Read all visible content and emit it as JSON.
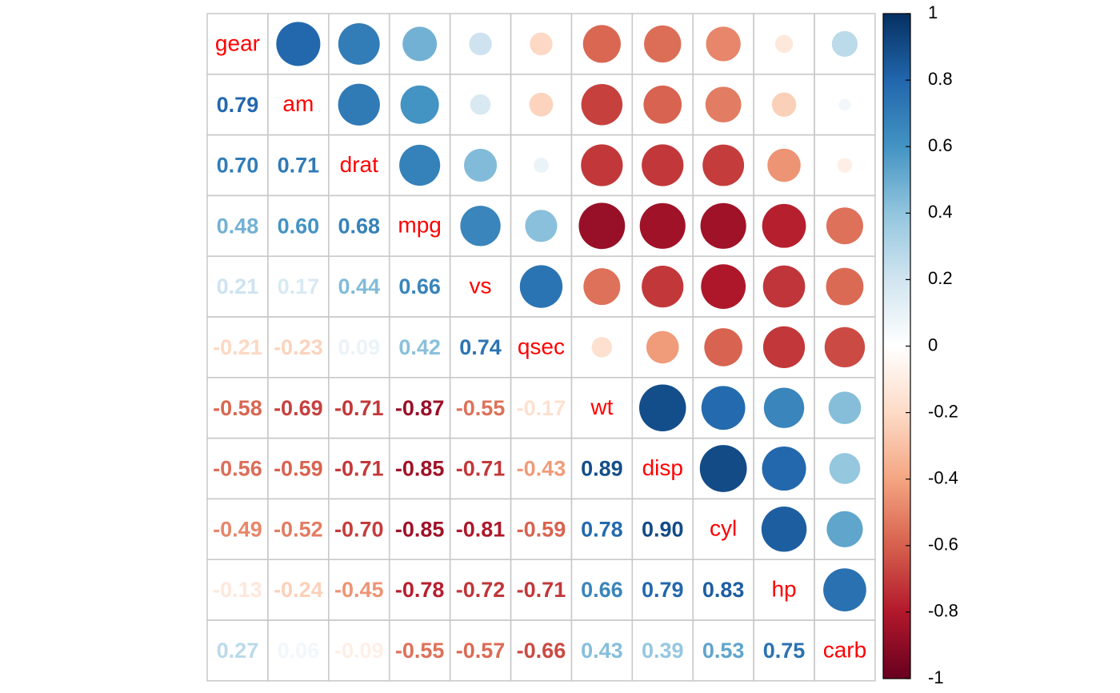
{
  "chart_data": {
    "type": "heatmap",
    "title": "",
    "variables": [
      "gear",
      "am",
      "drat",
      "mpg",
      "vs",
      "qsec",
      "wt",
      "disp",
      "cyl",
      "hp",
      "carb"
    ],
    "matrix": [
      [
        1.0,
        0.79,
        0.7,
        0.48,
        0.21,
        -0.21,
        -0.58,
        -0.56,
        -0.49,
        -0.13,
        0.27
      ],
      [
        0.79,
        1.0,
        0.71,
        0.6,
        0.17,
        -0.23,
        -0.69,
        -0.59,
        -0.52,
        -0.24,
        0.06
      ],
      [
        0.7,
        0.71,
        1.0,
        0.68,
        0.44,
        0.09,
        -0.71,
        -0.71,
        -0.7,
        -0.45,
        -0.09
      ],
      [
        0.48,
        0.6,
        0.68,
        1.0,
        0.66,
        0.42,
        -0.87,
        -0.85,
        -0.85,
        -0.78,
        -0.55
      ],
      [
        0.21,
        0.17,
        0.44,
        0.66,
        1.0,
        0.74,
        -0.55,
        -0.71,
        -0.81,
        -0.72,
        -0.57
      ],
      [
        -0.21,
        -0.23,
        0.09,
        0.42,
        0.74,
        1.0,
        -0.17,
        -0.43,
        -0.59,
        -0.71,
        -0.66
      ],
      [
        -0.58,
        -0.69,
        -0.71,
        -0.87,
        -0.55,
        -0.17,
        1.0,
        0.89,
        0.78,
        0.66,
        0.43
      ],
      [
        -0.56,
        -0.59,
        -0.71,
        -0.85,
        -0.71,
        -0.43,
        0.89,
        1.0,
        0.9,
        0.79,
        0.39
      ],
      [
        -0.49,
        -0.52,
        -0.7,
        -0.85,
        -0.81,
        -0.59,
        0.78,
        0.9,
        1.0,
        0.83,
        0.53
      ],
      [
        -0.13,
        -0.24,
        -0.45,
        -0.78,
        -0.72,
        -0.71,
        0.66,
        0.79,
        0.83,
        1.0,
        0.75
      ],
      [
        0.27,
        0.06,
        -0.09,
        -0.55,
        -0.57,
        -0.66,
        0.43,
        0.39,
        0.53,
        0.75,
        1.0
      ]
    ],
    "upper_triangle": "circle",
    "lower_triangle": "number",
    "diagonal": "variable-name",
    "grid": true,
    "colorbar": {
      "placement": "right",
      "range": [
        -1,
        1
      ],
      "ticks": [
        "1",
        "0.8",
        "0.6",
        "0.4",
        "0.2",
        "0",
        "-0.2",
        "-0.4",
        "-0.6",
        "-0.8",
        "-1"
      ],
      "colors": [
        "#67001F",
        "#B2182B",
        "#D6604D",
        "#F4A582",
        "#FDDBC7",
        "#FFFFFF",
        "#D1E5F0",
        "#92C5DE",
        "#4393C3",
        "#2166AC",
        "#053061"
      ]
    },
    "label_color": "#FF0000"
  }
}
